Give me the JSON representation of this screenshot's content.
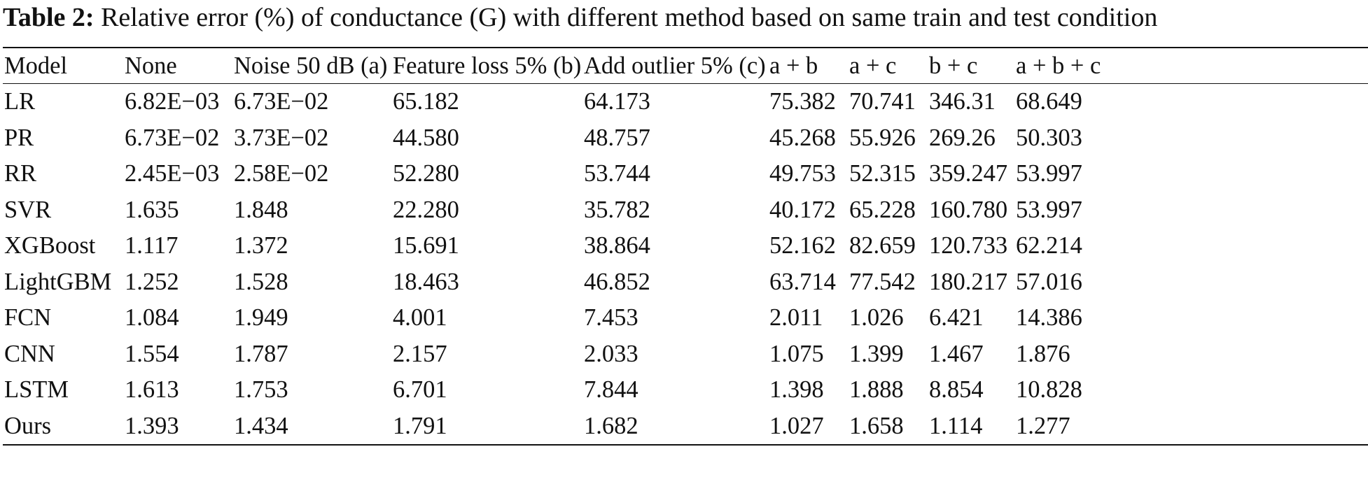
{
  "caption": {
    "label": "Table 2:",
    "text": "Relative error (%) of conductance (G) with different method based on same train and test condition"
  },
  "table": {
    "columns": [
      "Model",
      "None",
      "Noise 50 dB (a)",
      "Feature loss 5% (b)",
      "Add outlier 5% (c)",
      "a + b",
      "a + c",
      "b + c",
      "a + b + c"
    ],
    "rows": [
      [
        "LR",
        "6.82E−03",
        "6.73E−02",
        "65.182",
        "64.173",
        "75.382",
        "70.741",
        "346.31",
        "68.649"
      ],
      [
        "PR",
        "6.73E−02",
        "3.73E−02",
        "44.580",
        "48.757",
        "45.268",
        "55.926",
        "269.26",
        "50.303"
      ],
      [
        "RR",
        "2.45E−03",
        "2.58E−02",
        "52.280",
        "53.744",
        "49.753",
        "52.315",
        "359.247",
        "53.997"
      ],
      [
        "SVR",
        "1.635",
        "1.848",
        "22.280",
        "35.782",
        "40.172",
        "65.228",
        "160.780",
        "53.997"
      ],
      [
        "XGBoost",
        "1.117",
        "1.372",
        "15.691",
        "38.864",
        "52.162",
        "82.659",
        "120.733",
        "62.214"
      ],
      [
        "LightGBM",
        "1.252",
        "1.528",
        "18.463",
        "46.852",
        "63.714",
        "77.542",
        "180.217",
        "57.016"
      ],
      [
        "FCN",
        "1.084",
        "1.949",
        "4.001",
        "7.453",
        "2.011",
        "1.026",
        "6.421",
        "14.386"
      ],
      [
        "CNN",
        "1.554",
        "1.787",
        "2.157",
        "2.033",
        "1.075",
        "1.399",
        "1.467",
        "1.876"
      ],
      [
        "LSTM",
        "1.613",
        "1.753",
        "6.701",
        "7.844",
        "1.398",
        "1.888",
        "8.854",
        "10.828"
      ],
      [
        "Ours",
        "1.393",
        "1.434",
        "1.791",
        "1.682",
        "1.027",
        "1.658",
        "1.114",
        "1.277"
      ]
    ]
  }
}
